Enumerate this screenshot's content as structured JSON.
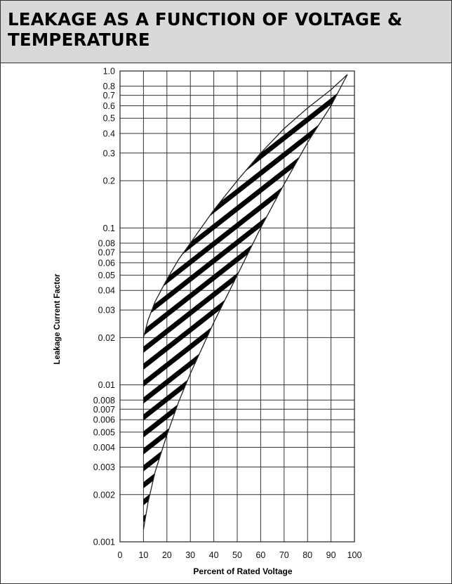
{
  "header": {
    "title": "LEAKAGE AS A FUNCTION OF VOLTAGE & TEMPERATURE"
  },
  "chart_data": {
    "type": "area",
    "title": "LEAKAGE AS A FUNCTION OF VOLTAGE & TEMPERATURE",
    "xlabel": "Percent of Rated Voltage",
    "ylabel": "Leakage Current Factor",
    "xlim": [
      0,
      100
    ],
    "ylim": [
      0.001,
      1.0
    ],
    "y_scale": "log",
    "grid": true,
    "x_ticks": [
      0,
      10,
      20,
      30,
      40,
      50,
      60,
      70,
      80,
      90,
      100
    ],
    "x_tick_labels": [
      "0",
      "10",
      "20",
      "30",
      "40",
      "50",
      "60",
      "70",
      "80",
      "90",
      "100"
    ],
    "y_ticks": [
      0.001,
      0.002,
      0.003,
      0.004,
      0.005,
      0.006,
      0.007,
      0.008,
      0.01,
      0.02,
      0.03,
      0.04,
      0.05,
      0.06,
      0.07,
      0.08,
      0.1,
      0.2,
      0.3,
      0.4,
      0.5,
      0.6,
      0.7,
      0.8,
      1.0
    ],
    "y_tick_labels": [
      "0.001",
      "0.002",
      "0.003",
      "0.004",
      "0.005",
      "0.006",
      "0.007",
      "0.008",
      "0.01",
      "0.02",
      "0.03",
      "0.04",
      "0.05",
      "0.06",
      "0.07",
      "0.08",
      "0.1",
      "0.2",
      "0.3",
      "0.4",
      "0.5",
      "0.6",
      "0.7",
      "0.8",
      "1.0"
    ],
    "band": {
      "fill": "diagonal hatching",
      "upper": {
        "x": [
          10,
          12,
          15,
          20,
          25,
          30,
          40,
          50,
          60,
          70,
          80,
          90,
          97
        ],
        "y": [
          0.02,
          0.026,
          0.034,
          0.047,
          0.063,
          0.08,
          0.13,
          0.2,
          0.3,
          0.43,
          0.58,
          0.76,
          0.95
        ]
      },
      "lower": {
        "x": [
          10,
          12,
          15,
          20,
          25,
          30,
          40,
          50,
          60,
          70,
          80,
          90,
          97
        ],
        "y": [
          0.0012,
          0.0018,
          0.0028,
          0.0048,
          0.0078,
          0.0118,
          0.025,
          0.05,
          0.1,
          0.19,
          0.35,
          0.6,
          0.95
        ]
      }
    },
    "colors": {
      "line": "#222222",
      "grid": "#333333",
      "hatch": "#000000"
    }
  }
}
